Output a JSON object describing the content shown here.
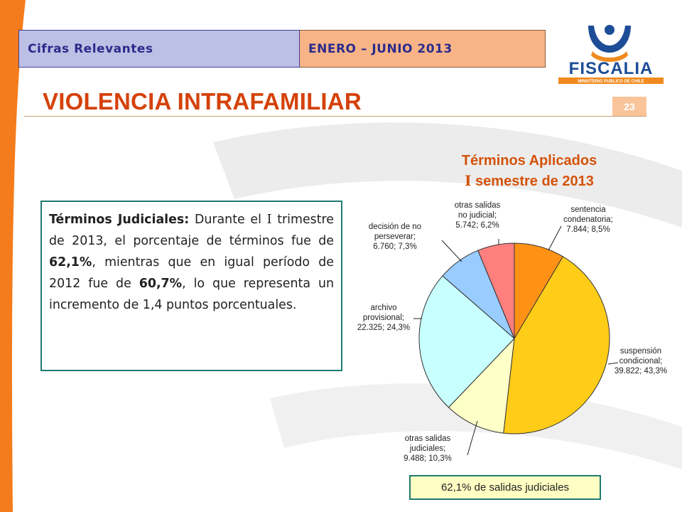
{
  "header": {
    "section": "Cifras Relevantes",
    "period": "ENERO – JUNIO 2013"
  },
  "logo": {
    "name": "FISCALIA",
    "subtitle": "MINISTERIO PUBLICO DE CHILE",
    "colors": {
      "blue": "#1d4d96",
      "orange": "#f08a1e"
    }
  },
  "page": {
    "title": "VIOLENCIA INTRAFAMILIAR",
    "slide_number": "23"
  },
  "summary": {
    "lead": "Términos Judiciales:",
    "t1": " Durante el ",
    "roman": "I",
    "t2": " trimestre de 2013, el porcentaje de términos fue de ",
    "pct_2013": "62,1%",
    "t3": ", mientras que en igual período de 2012 fue de ",
    "pct_2012": "60,7%",
    "t4": ", lo que representa un incremento de 1,4 puntos porcentuales."
  },
  "chart_data": {
    "type": "pie",
    "title_line1": "Términos Aplicados",
    "title_roman": "I",
    "title_line2": " semestre de 2013",
    "slices": [
      {
        "name": "sentencia condenatoria",
        "label_lines": [
          "sentencia",
          "condenatoria;",
          "7.844; 8,5%"
        ],
        "value": 7844,
        "percent": 8.5,
        "color": "#ff9215"
      },
      {
        "name": "suspensión condicional",
        "label_lines": [
          "suspensión",
          "condicional;",
          "39.822; 43,3%"
        ],
        "value": 39822,
        "percent": 43.3,
        "color": "#ffcc18"
      },
      {
        "name": "otras salidas judiciales",
        "label_lines": [
          "otras salidas",
          "judiciales;",
          "9.488; 10,3%"
        ],
        "value": 9488,
        "percent": 10.3,
        "color": "#ffffc8"
      },
      {
        "name": "archivo provisional",
        "label_lines": [
          "archivo",
          "provisional;",
          "22.325; 24,3%"
        ],
        "value": 22325,
        "percent": 24.3,
        "color": "#c8ffff"
      },
      {
        "name": "decisión de no perseverar",
        "label_lines": [
          "decisión de no",
          "perseverar;",
          "6.760; 7,3%"
        ],
        "value": 6760,
        "percent": 7.3,
        "color": "#99ccff"
      },
      {
        "name": "otras salidas no judicial",
        "label_lines": [
          "otras salidas",
          "no judicial;",
          "5.742; 6,2%"
        ],
        "value": 5742,
        "percent": 6.2,
        "color": "#ff7f7f"
      }
    ],
    "footer": "62,1% de salidas judiciales"
  }
}
